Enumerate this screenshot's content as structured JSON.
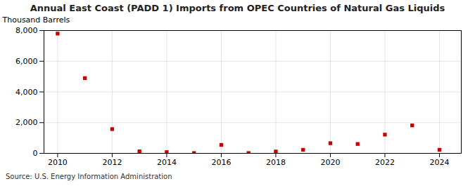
{
  "chart_data": {
    "type": "scatter",
    "title": "Annual East Coast (PADD 1) Imports from OPEC Countries of Natural Gas Liquids",
    "ylabel": "Thousand Barrels",
    "source": "Source: U.S. Energy Information Administration",
    "x": [
      2010,
      2011,
      2012,
      2013,
      2014,
      2015,
      2016,
      2017,
      2018,
      2019,
      2020,
      2021,
      2022,
      2023,
      2024
    ],
    "values": [
      7800,
      4900,
      1580,
      130,
      80,
      20,
      550,
      20,
      120,
      230,
      660,
      610,
      1220,
      1820,
      230
    ],
    "color": "#cc0000",
    "marker": "square",
    "xlim": [
      2009.5,
      2024.8
    ],
    "xticks": [
      2010,
      2012,
      2014,
      2016,
      2018,
      2020,
      2022,
      2024
    ],
    "ylim": [
      0,
      8000
    ],
    "yticks": [
      0,
      {
        "value": 2000,
        "label": "2,000"
      },
      {
        "value": 4000,
        "label": "4,000"
      },
      {
        "value": 6000,
        "label": "6,000"
      },
      {
        "value": 8000,
        "label": "8,000"
      }
    ],
    "grid": true
  }
}
